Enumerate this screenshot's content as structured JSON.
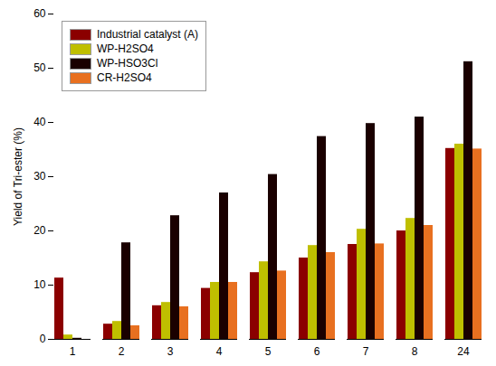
{
  "chart_data": {
    "type": "bar",
    "categories": [
      "1",
      "2",
      "3",
      "4",
      "5",
      "6",
      "7",
      "8",
      "24"
    ],
    "series": [
      {
        "name": "Industrial catalyst (A)",
        "color": "#8B0000",
        "values": [
          11.3,
          2.8,
          6.2,
          9.4,
          12.3,
          15.0,
          17.5,
          20.0,
          35.2
        ]
      },
      {
        "name": "WP-H2SO4",
        "color": "#BFBF00",
        "values": [
          0.8,
          3.3,
          6.8,
          10.5,
          14.3,
          17.3,
          20.3,
          22.3,
          36.0
        ]
      },
      {
        "name": "WP-HSO3Cl",
        "color": "#1A0000",
        "values": [
          0.2,
          17.8,
          22.8,
          27.0,
          30.4,
          37.4,
          39.8,
          41.0,
          51.2
        ]
      },
      {
        "name": "CR-H2SO4",
        "color": "#E87020",
        "values": [
          0.0,
          2.5,
          6.0,
          10.5,
          12.6,
          16.0,
          17.6,
          21.0,
          35.1
        ]
      }
    ],
    "ylabel": "Yield of Tri-ester (%)",
    "ylim": [
      0,
      60
    ],
    "yticks": [
      0,
      10,
      20,
      30,
      40,
      50,
      60
    ],
    "grid": false,
    "legend": "upper left"
  }
}
